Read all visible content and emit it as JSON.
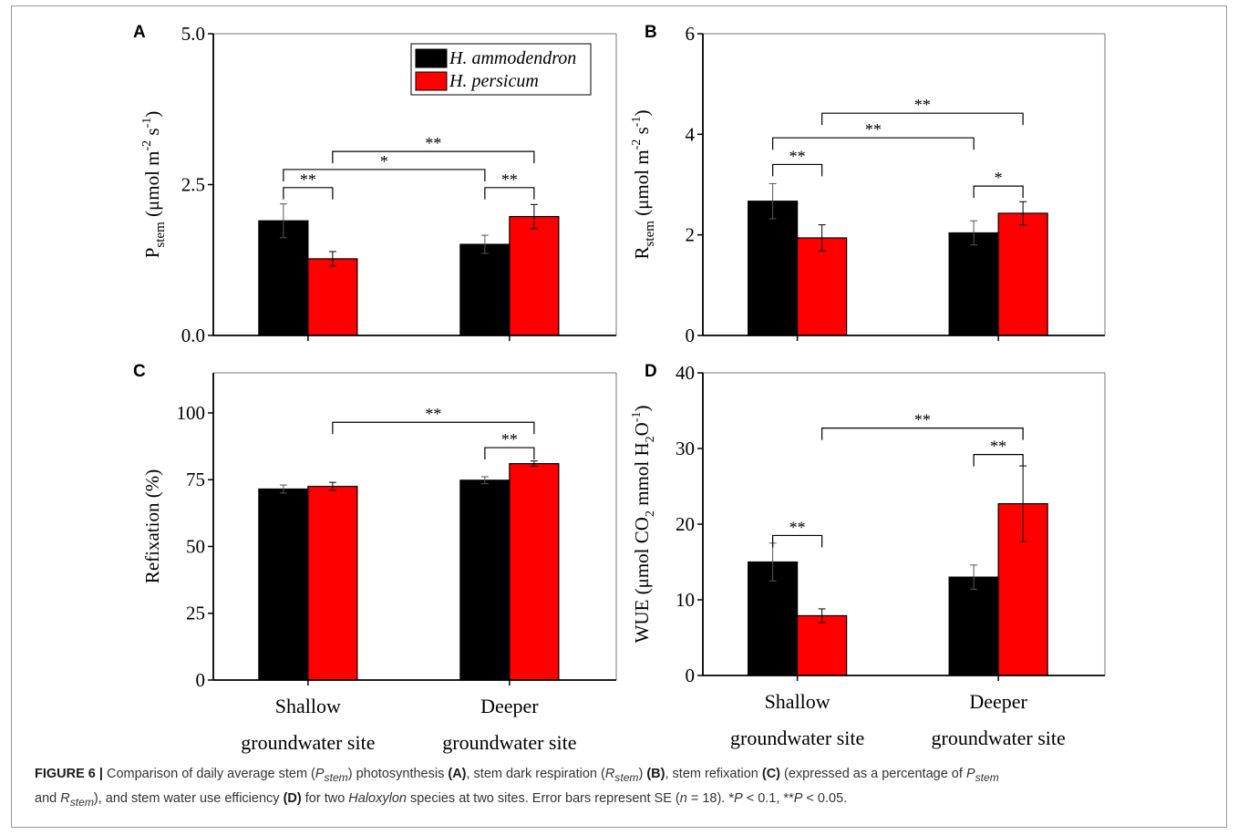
{
  "legend": {
    "items": [
      {
        "name": "H. ammodendron",
        "color": "#000000"
      },
      {
        "name": "H. persicum",
        "color": "#ff0000"
      }
    ]
  },
  "categories": [
    [
      "Shallow",
      "groundwater site"
    ],
    [
      "Deeper",
      "groundwater site"
    ]
  ],
  "chart_data": [
    {
      "panel": "A",
      "type": "bar",
      "ylabel": "P",
      "ylabel_sub": "stem",
      "ylabel_unit": "(μmol m",
      "ylabel_sup1": "-2",
      "ylabel_mid": " s",
      "ylabel_sup2": "-1",
      "ylabel_end": ")",
      "ylim": [
        0,
        5
      ],
      "yticks": [
        "0.0",
        "2.5",
        "5.0"
      ],
      "ytick_values": [
        0,
        2.5,
        5
      ],
      "series": [
        {
          "name": "H. ammodendron",
          "values": [
            1.9,
            1.51
          ],
          "err": [
            0.28,
            0.15
          ]
        },
        {
          "name": "H. persicum",
          "values": [
            1.27,
            1.97
          ],
          "err": [
            0.12,
            0.2
          ]
        }
      ],
      "brackets": [
        {
          "label": "**",
          "from": [
            0,
            0
          ],
          "to": [
            0,
            1
          ],
          "y": 2.45
        },
        {
          "label": "**",
          "from": [
            1,
            0
          ],
          "to": [
            1,
            1
          ],
          "y": 2.45
        },
        {
          "label": "*",
          "from": [
            0,
            0
          ],
          "to": [
            1,
            0
          ],
          "y": 2.75
        },
        {
          "label": "**",
          "from": [
            0,
            1
          ],
          "to": [
            1,
            1
          ],
          "y": 3.05
        }
      ]
    },
    {
      "panel": "B",
      "type": "bar",
      "ylabel": "R",
      "ylabel_sub": "stem",
      "ylabel_unit": "(μmol m",
      "ylabel_sup1": "-2",
      "ylabel_mid": " s",
      "ylabel_sup2": "-1",
      "ylabel_end": ")",
      "ylim": [
        0,
        6
      ],
      "yticks": [
        "0",
        "2",
        "4",
        "6"
      ],
      "ytick_values": [
        0,
        2,
        4,
        6
      ],
      "series": [
        {
          "name": "H. ammodendron",
          "values": [
            2.67,
            2.04
          ],
          "err": [
            0.35,
            0.24
          ]
        },
        {
          "name": "H. persicum",
          "values": [
            1.94,
            2.43
          ],
          "err": [
            0.26,
            0.23
          ]
        }
      ],
      "brackets": [
        {
          "label": "**",
          "from": [
            0,
            0
          ],
          "to": [
            0,
            1
          ],
          "y": 3.4
        },
        {
          "label": "*",
          "from": [
            1,
            0
          ],
          "to": [
            1,
            1
          ],
          "y": 2.97
        },
        {
          "label": "**",
          "from": [
            0,
            0
          ],
          "to": [
            1,
            0
          ],
          "y": 3.93
        },
        {
          "label": "**",
          "from": [
            0,
            1
          ],
          "to": [
            1,
            1
          ],
          "y": 4.42
        }
      ]
    },
    {
      "panel": "C",
      "type": "bar",
      "ylabel": "Refixation (%)",
      "ylim": [
        0,
        115
      ],
      "yticks": [
        "0",
        "25",
        "50",
        "75",
        "100"
      ],
      "ytick_values": [
        0,
        25,
        50,
        75,
        100
      ],
      "series": [
        {
          "name": "H. ammodendron",
          "values": [
            71.5,
            74.8
          ],
          "err": [
            1.5,
            1.3
          ]
        },
        {
          "name": "H. persicum",
          "values": [
            72.5,
            81
          ],
          "err": [
            1.5,
            1
          ]
        }
      ],
      "brackets": [
        {
          "label": "**",
          "from": [
            1,
            0
          ],
          "to": [
            1,
            1
          ],
          "y": 87
        },
        {
          "label": "**",
          "from": [
            0,
            1
          ],
          "to": [
            1,
            1
          ],
          "y": 96.5
        }
      ]
    },
    {
      "panel": "D",
      "type": "bar",
      "ylabel": "WUE (μmol CO",
      "ylabel_sub": "2",
      "ylabel_mid": " mmol H",
      "ylabel_sub2": "2",
      "ylabel_end": "O",
      "ylabel_sup2": "-1",
      "ylabel_close": ")",
      "ylim": [
        0,
        40
      ],
      "yticks": [
        "0",
        "10",
        "20",
        "30",
        "40"
      ],
      "ytick_values": [
        0,
        10,
        20,
        30,
        40
      ],
      "series": [
        {
          "name": "H. ammodendron",
          "values": [
            15,
            13
          ],
          "err": [
            2.5,
            1.6
          ]
        },
        {
          "name": "H. persicum",
          "values": [
            7.9,
            22.7
          ],
          "err": [
            0.9,
            5
          ]
        }
      ],
      "brackets": [
        {
          "label": "**",
          "from": [
            0,
            0
          ],
          "to": [
            0,
            1
          ],
          "y": 18.5
        },
        {
          "label": "**",
          "from": [
            1,
            0
          ],
          "to": [
            1,
            1
          ],
          "y": 29.2
        },
        {
          "label": "**",
          "from": [
            0,
            1
          ],
          "to": [
            1,
            1
          ],
          "y": 32.7
        }
      ]
    }
  ],
  "caption": {
    "figure": "FIGURE 6 |",
    "t1": " Comparison of daily average stem (",
    "p": "P",
    "p_sub": "stem",
    "t2": ") photosynthesis ",
    "a": "(A)",
    "t3": ", stem dark respiration (",
    "r": "R",
    "r_sub": "stem",
    "t4": ") ",
    "b": "(B)",
    "t5": ", stem refixation ",
    "c": "(C)",
    "t6": " (expressed as a percentage of ",
    "p2": "P",
    "p2_sub": "stem",
    "t7": "and ",
    "r2": "R",
    "r2_sub": "stem",
    "t8": "), and stem water use efficiency ",
    "d": "(D)",
    "t9": " for two ",
    "genus": "Haloxylon",
    "t10": " species at two sites. Error bars represent SE (",
    "n": "n",
    "t11": " = 18). *",
    "P1": "P",
    "t12": " < 0.1, **",
    "P2": "P",
    "t13": " < 0.05."
  }
}
